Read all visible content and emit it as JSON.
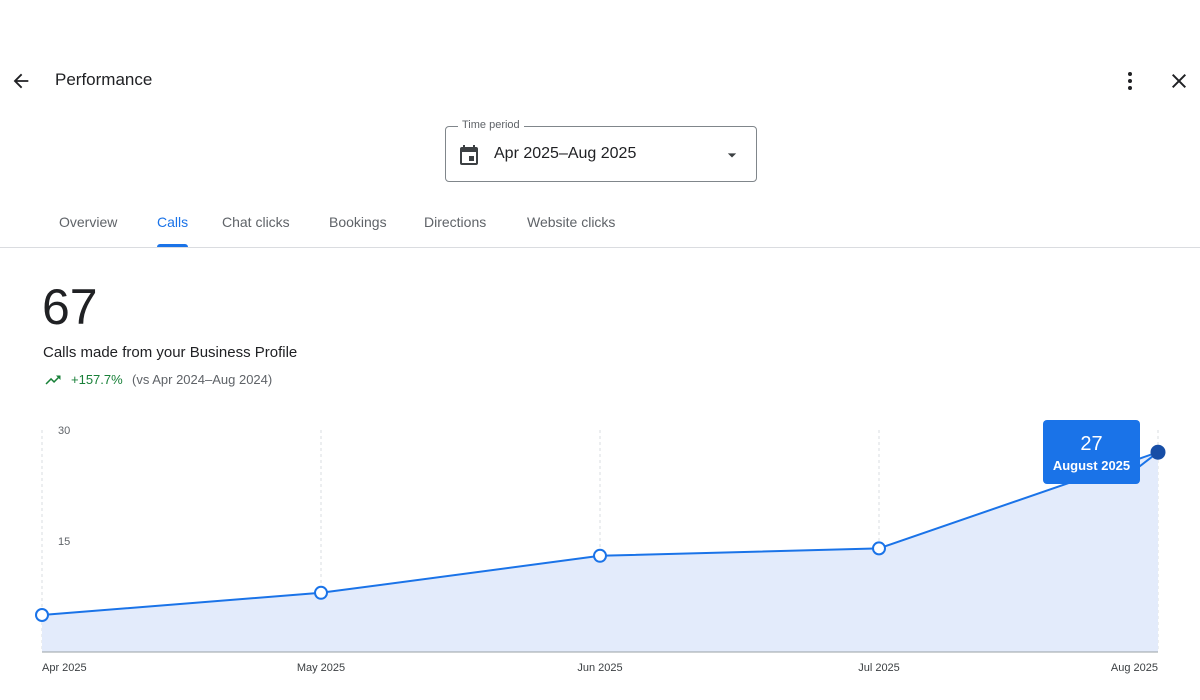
{
  "header": {
    "title": "Performance"
  },
  "time_period": {
    "label": "Time period",
    "value": "Apr 2025–Aug 2025"
  },
  "tabs": [
    "Overview",
    "Calls",
    "Chat clicks",
    "Bookings",
    "Directions",
    "Website clicks"
  ],
  "active_tab": 1,
  "summary": {
    "total": 67,
    "description": "Calls made from your Business Profile",
    "change": "+157.7%",
    "comparison": "(vs Apr 2024–Aug 2024)"
  },
  "chart_data": {
    "type": "area",
    "categories": [
      "Apr 2025",
      "May 2025",
      "Jun 2025",
      "Jul 2025",
      "Aug 2025"
    ],
    "values": [
      5,
      8,
      13,
      14,
      27
    ],
    "color": "#1a73e8",
    "fill": "#e3ebfb",
    "ylim": [
      0,
      30
    ],
    "yticks": [
      15,
      30
    ],
    "tooltip": {
      "index": 4,
      "label": "August 2025"
    }
  }
}
